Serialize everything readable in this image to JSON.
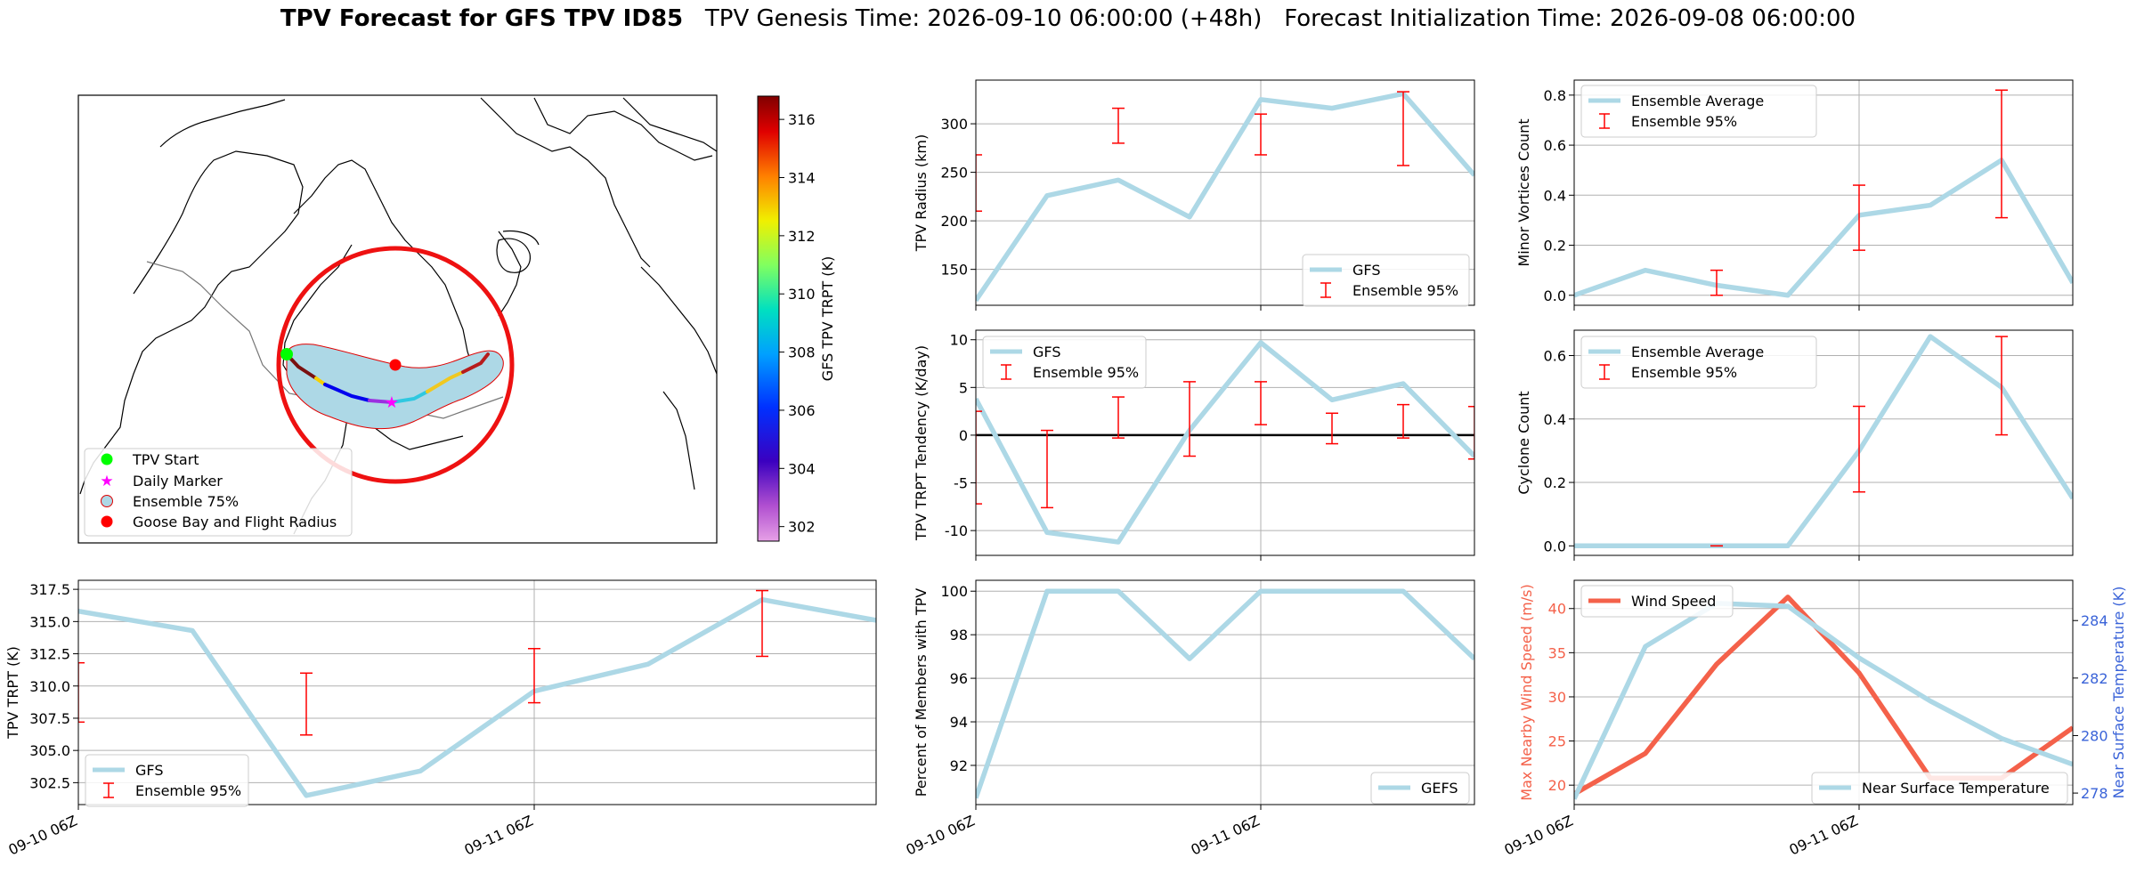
{
  "figure": {
    "title_bold": "TPV Forecast for GFS TPV ID85",
    "title_rest": "TPV Genesis Time: 2026-09-10 06:00:00 (+48h)   Forecast Initialization Time: 2026-09-08 06:00:00"
  },
  "map": {
    "colorbar_label": "GFS TPV TRPT (K)",
    "colorbar_ticks": [
      "302",
      "304",
      "306",
      "308",
      "310",
      "312",
      "314",
      "316"
    ],
    "colorbar_range": [
      301.5,
      316.8
    ],
    "legend": [
      "TPV Start",
      "Daily Marker",
      "Ensemble 75%",
      "Goose Bay and Flight Radius"
    ],
    "colors": {
      "start": "#00ff00",
      "daily": "#ff00ff",
      "ensemble_fill": "#add8e6",
      "ensemble_edge": "#e00000",
      "goose_bay": "#ff0000",
      "radius": "#ee1111"
    }
  },
  "chart_data": [
    {
      "id": "trpt",
      "type": "line",
      "x": [
        "09-10 06Z",
        "09-10 12Z",
        "09-10 18Z",
        "09-11 00Z",
        "09-11 06Z",
        "09-11 12Z",
        "09-11 18Z",
        "09-12 00Z"
      ],
      "xtick_labels": [
        "09-10 06Z",
        "09-11 06Z"
      ],
      "ylabel": "TPV TRPT (K)",
      "ylim": [
        300.8,
        318.2
      ],
      "yticks": [
        "302.5",
        "305.0",
        "307.5",
        "310.0",
        "312.5",
        "315.0",
        "317.5"
      ],
      "grid": true,
      "legend_position": "lower-left",
      "series": [
        {
          "name": "GFS",
          "color": "#add8e6",
          "values": [
            315.8,
            314.3,
            301.5,
            303.4,
            309.6,
            311.7,
            316.7,
            315.1
          ]
        },
        {
          "name": "Ensemble 95%",
          "color": "#ff0000",
          "type": "errorbar",
          "bars": [
            {
              "x": 0,
              "low": 307.2,
              "high": 311.8
            },
            {
              "x": 2,
              "low": 306.2,
              "high": 311.0
            },
            {
              "x": 4,
              "low": 308.7,
              "high": 312.9
            },
            {
              "x": 6,
              "low": 312.3,
              "high": 317.4
            }
          ]
        }
      ]
    },
    {
      "id": "radius",
      "type": "line",
      "x": [
        "09-10 06Z",
        "09-10 12Z",
        "09-10 18Z",
        "09-11 00Z",
        "09-11 06Z",
        "09-11 12Z",
        "09-11 18Z",
        "09-12 00Z"
      ],
      "ylabel": "TPV Radius (km)",
      "ylim": [
        113,
        345
      ],
      "yticks": [
        "150",
        "200",
        "250",
        "300"
      ],
      "grid": true,
      "legend_position": "lower-right",
      "series": [
        {
          "name": "GFS",
          "color": "#add8e6",
          "values": [
            118,
            226,
            242,
            204,
            325,
            316,
            331,
            247
          ]
        },
        {
          "name": "Ensemble 95%",
          "color": "#ff0000",
          "type": "errorbar",
          "bars": [
            {
              "x": 0,
              "low": 210,
              "high": 268
            },
            {
              "x": 2,
              "low": 280,
              "high": 316
            },
            {
              "x": 4,
              "low": 268,
              "high": 310
            },
            {
              "x": 6,
              "low": 257,
              "high": 333
            }
          ]
        }
      ]
    },
    {
      "id": "tendency",
      "type": "line",
      "x": [
        "09-10 06Z",
        "09-10 12Z",
        "09-10 18Z",
        "09-11 00Z",
        "09-11 06Z",
        "09-11 12Z",
        "09-11 18Z",
        "09-12 00Z"
      ],
      "ylabel": "TPV TRPT Tendency (K/day)",
      "ylim": [
        -12.6,
        11
      ],
      "yticks": [
        "-10",
        "-5",
        "0",
        "5",
        "10"
      ],
      "grid": true,
      "zero_line": true,
      "legend_position": "upper-left",
      "series": [
        {
          "name": "GFS",
          "color": "#add8e6",
          "values": [
            3.8,
            -10.2,
            -11.2,
            0.5,
            9.7,
            3.7,
            5.4,
            -2.2
          ]
        },
        {
          "name": "Ensemble 95%",
          "color": "#ff0000",
          "type": "errorbar",
          "bars": [
            {
              "x": 0,
              "low": -7.2,
              "high": 2.5
            },
            {
              "x": 1,
              "low": -7.6,
              "high": 0.5
            },
            {
              "x": 2,
              "low": -0.3,
              "high": 4.0
            },
            {
              "x": 3,
              "low": -2.2,
              "high": 5.6
            },
            {
              "x": 4,
              "low": 1.1,
              "high": 5.6
            },
            {
              "x": 5,
              "low": -0.9,
              "high": 2.3
            },
            {
              "x": 6,
              "low": -0.3,
              "high": 3.2
            },
            {
              "x": 7,
              "low": -2.5,
              "high": 3.0
            }
          ]
        }
      ]
    },
    {
      "id": "members",
      "type": "line",
      "x": [
        "09-10 06Z",
        "09-10 12Z",
        "09-10 18Z",
        "09-11 00Z",
        "09-11 06Z",
        "09-11 12Z",
        "09-11 18Z",
        "09-12 00Z"
      ],
      "xtick_labels": [
        "09-10 06Z",
        "09-11 06Z"
      ],
      "ylabel": "Percent of Members with TPV",
      "ylim": [
        90.2,
        100.5
      ],
      "yticks": [
        "92",
        "94",
        "96",
        "98",
        "100"
      ],
      "grid": true,
      "legend_position": "lower-right",
      "series": [
        {
          "name": "GEFS",
          "color": "#add8e6",
          "values": [
            90.5,
            100,
            100,
            96.9,
            100,
            100,
            100,
            96.9
          ]
        }
      ]
    },
    {
      "id": "minor",
      "type": "line",
      "x": [
        "09-10 06Z",
        "09-10 12Z",
        "09-10 18Z",
        "09-11 00Z",
        "09-11 06Z",
        "09-11 12Z",
        "09-11 18Z",
        "09-12 00Z"
      ],
      "ylabel": "Minor Vortices Count",
      "ylim": [
        -0.04,
        0.86
      ],
      "yticks": [
        "0.0",
        "0.2",
        "0.4",
        "0.6",
        "0.8"
      ],
      "grid": true,
      "legend_position": "upper-left",
      "series": [
        {
          "name": "Ensemble Average",
          "color": "#add8e6",
          "values": [
            0.0,
            0.1,
            0.04,
            0.0,
            0.32,
            0.36,
            0.54,
            0.05
          ]
        },
        {
          "name": "Ensemble 95%",
          "color": "#ff0000",
          "type": "errorbar",
          "bars": [
            {
              "x": 2,
              "low": 0.0,
              "high": 0.1
            },
            {
              "x": 4,
              "low": 0.18,
              "high": 0.44
            },
            {
              "x": 6,
              "low": 0.31,
              "high": 0.82
            }
          ]
        }
      ]
    },
    {
      "id": "cyclone",
      "type": "line",
      "x": [
        "09-10 06Z",
        "09-10 12Z",
        "09-10 18Z",
        "09-11 00Z",
        "09-11 06Z",
        "09-11 12Z",
        "09-11 18Z",
        "09-12 00Z"
      ],
      "ylabel": "Cyclone Count",
      "ylim": [
        -0.03,
        0.68
      ],
      "yticks": [
        "0.0",
        "0.2",
        "0.4",
        "0.6"
      ],
      "grid": true,
      "legend_position": "upper-left",
      "series": [
        {
          "name": "Ensemble Average",
          "color": "#add8e6",
          "values": [
            0.0,
            0.0,
            0.0,
            0.0,
            0.3,
            0.66,
            0.5,
            0.15
          ]
        },
        {
          "name": "Ensemble 95%",
          "color": "#ff0000",
          "type": "errorbar",
          "bars": [
            {
              "x": 2,
              "low": 0.0,
              "high": 0.0
            },
            {
              "x": 4,
              "low": 0.17,
              "high": 0.44
            },
            {
              "x": 6,
              "low": 0.35,
              "high": 0.66
            }
          ]
        }
      ]
    },
    {
      "id": "wind_temp",
      "type": "line",
      "x": [
        "09-10 06Z",
        "09-10 12Z",
        "09-10 18Z",
        "09-11 00Z",
        "09-11 06Z",
        "09-11 12Z",
        "09-11 18Z",
        "09-12 00Z"
      ],
      "xtick_labels": [
        "09-10 06Z",
        "09-11 06Z"
      ],
      "ylabel": "Max Nearby Wind Speed (m/s)",
      "ylim": [
        17.8,
        43.2
      ],
      "yticks": [
        "20",
        "25",
        "30",
        "35",
        "40"
      ],
      "y2label": "Near Surface Temperature (K)",
      "y2lim": [
        277.6,
        285.4
      ],
      "y2ticks": [
        "278",
        "280",
        "282",
        "284"
      ],
      "grid": true,
      "colors": {
        "wind": "#f4614a",
        "temp": "#add8e6",
        "y1_text": "#f4614a",
        "y2_text": "#3a63d8"
      },
      "series": [
        {
          "name": "Wind Speed",
          "axis": "left",
          "color": "#f4614a",
          "values": [
            19.0,
            23.6,
            33.7,
            41.3,
            32.7,
            20.8,
            20.8,
            26.5
          ]
        },
        {
          "name": "Near Surface Temperature",
          "axis": "right",
          "color": "#add8e6",
          "values": [
            277.8,
            283.1,
            284.6,
            284.5,
            282.7,
            281.2,
            279.9,
            279.0
          ]
        }
      ]
    }
  ]
}
